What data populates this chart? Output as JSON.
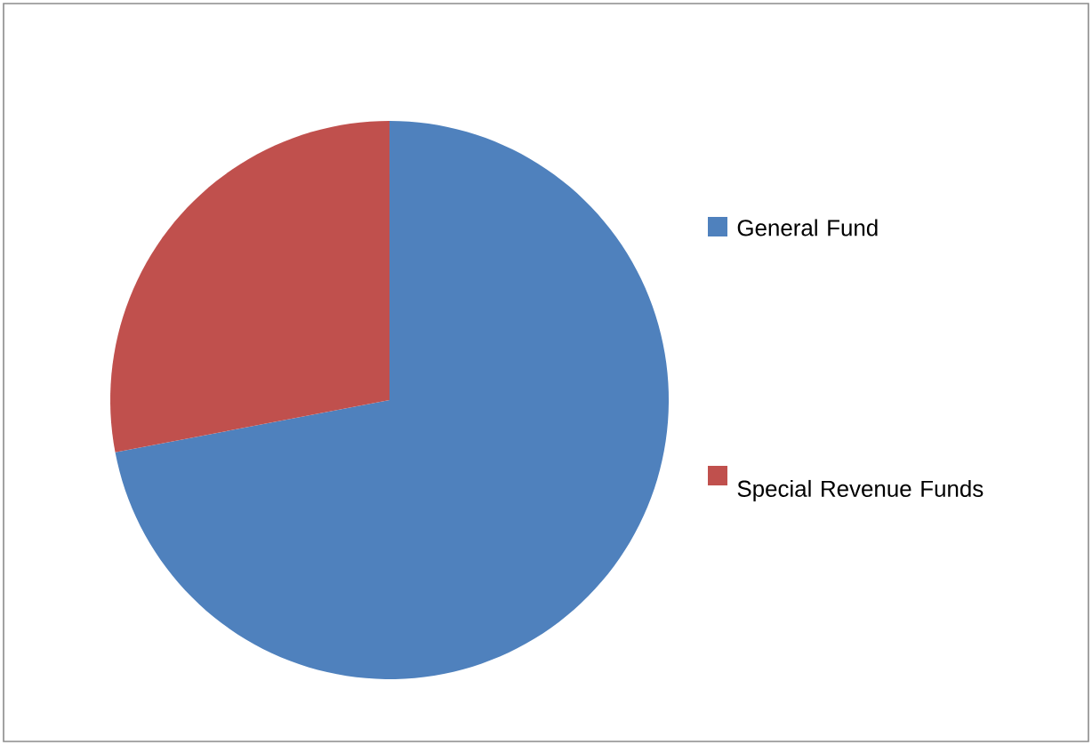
{
  "chart_data": {
    "type": "pie",
    "categories": [
      "General Fund",
      "Special Revenue Funds"
    ],
    "values": [
      72,
      28
    ],
    "colors": [
      "#4f81bd",
      "#c0504d"
    ],
    "legend": "right"
  }
}
